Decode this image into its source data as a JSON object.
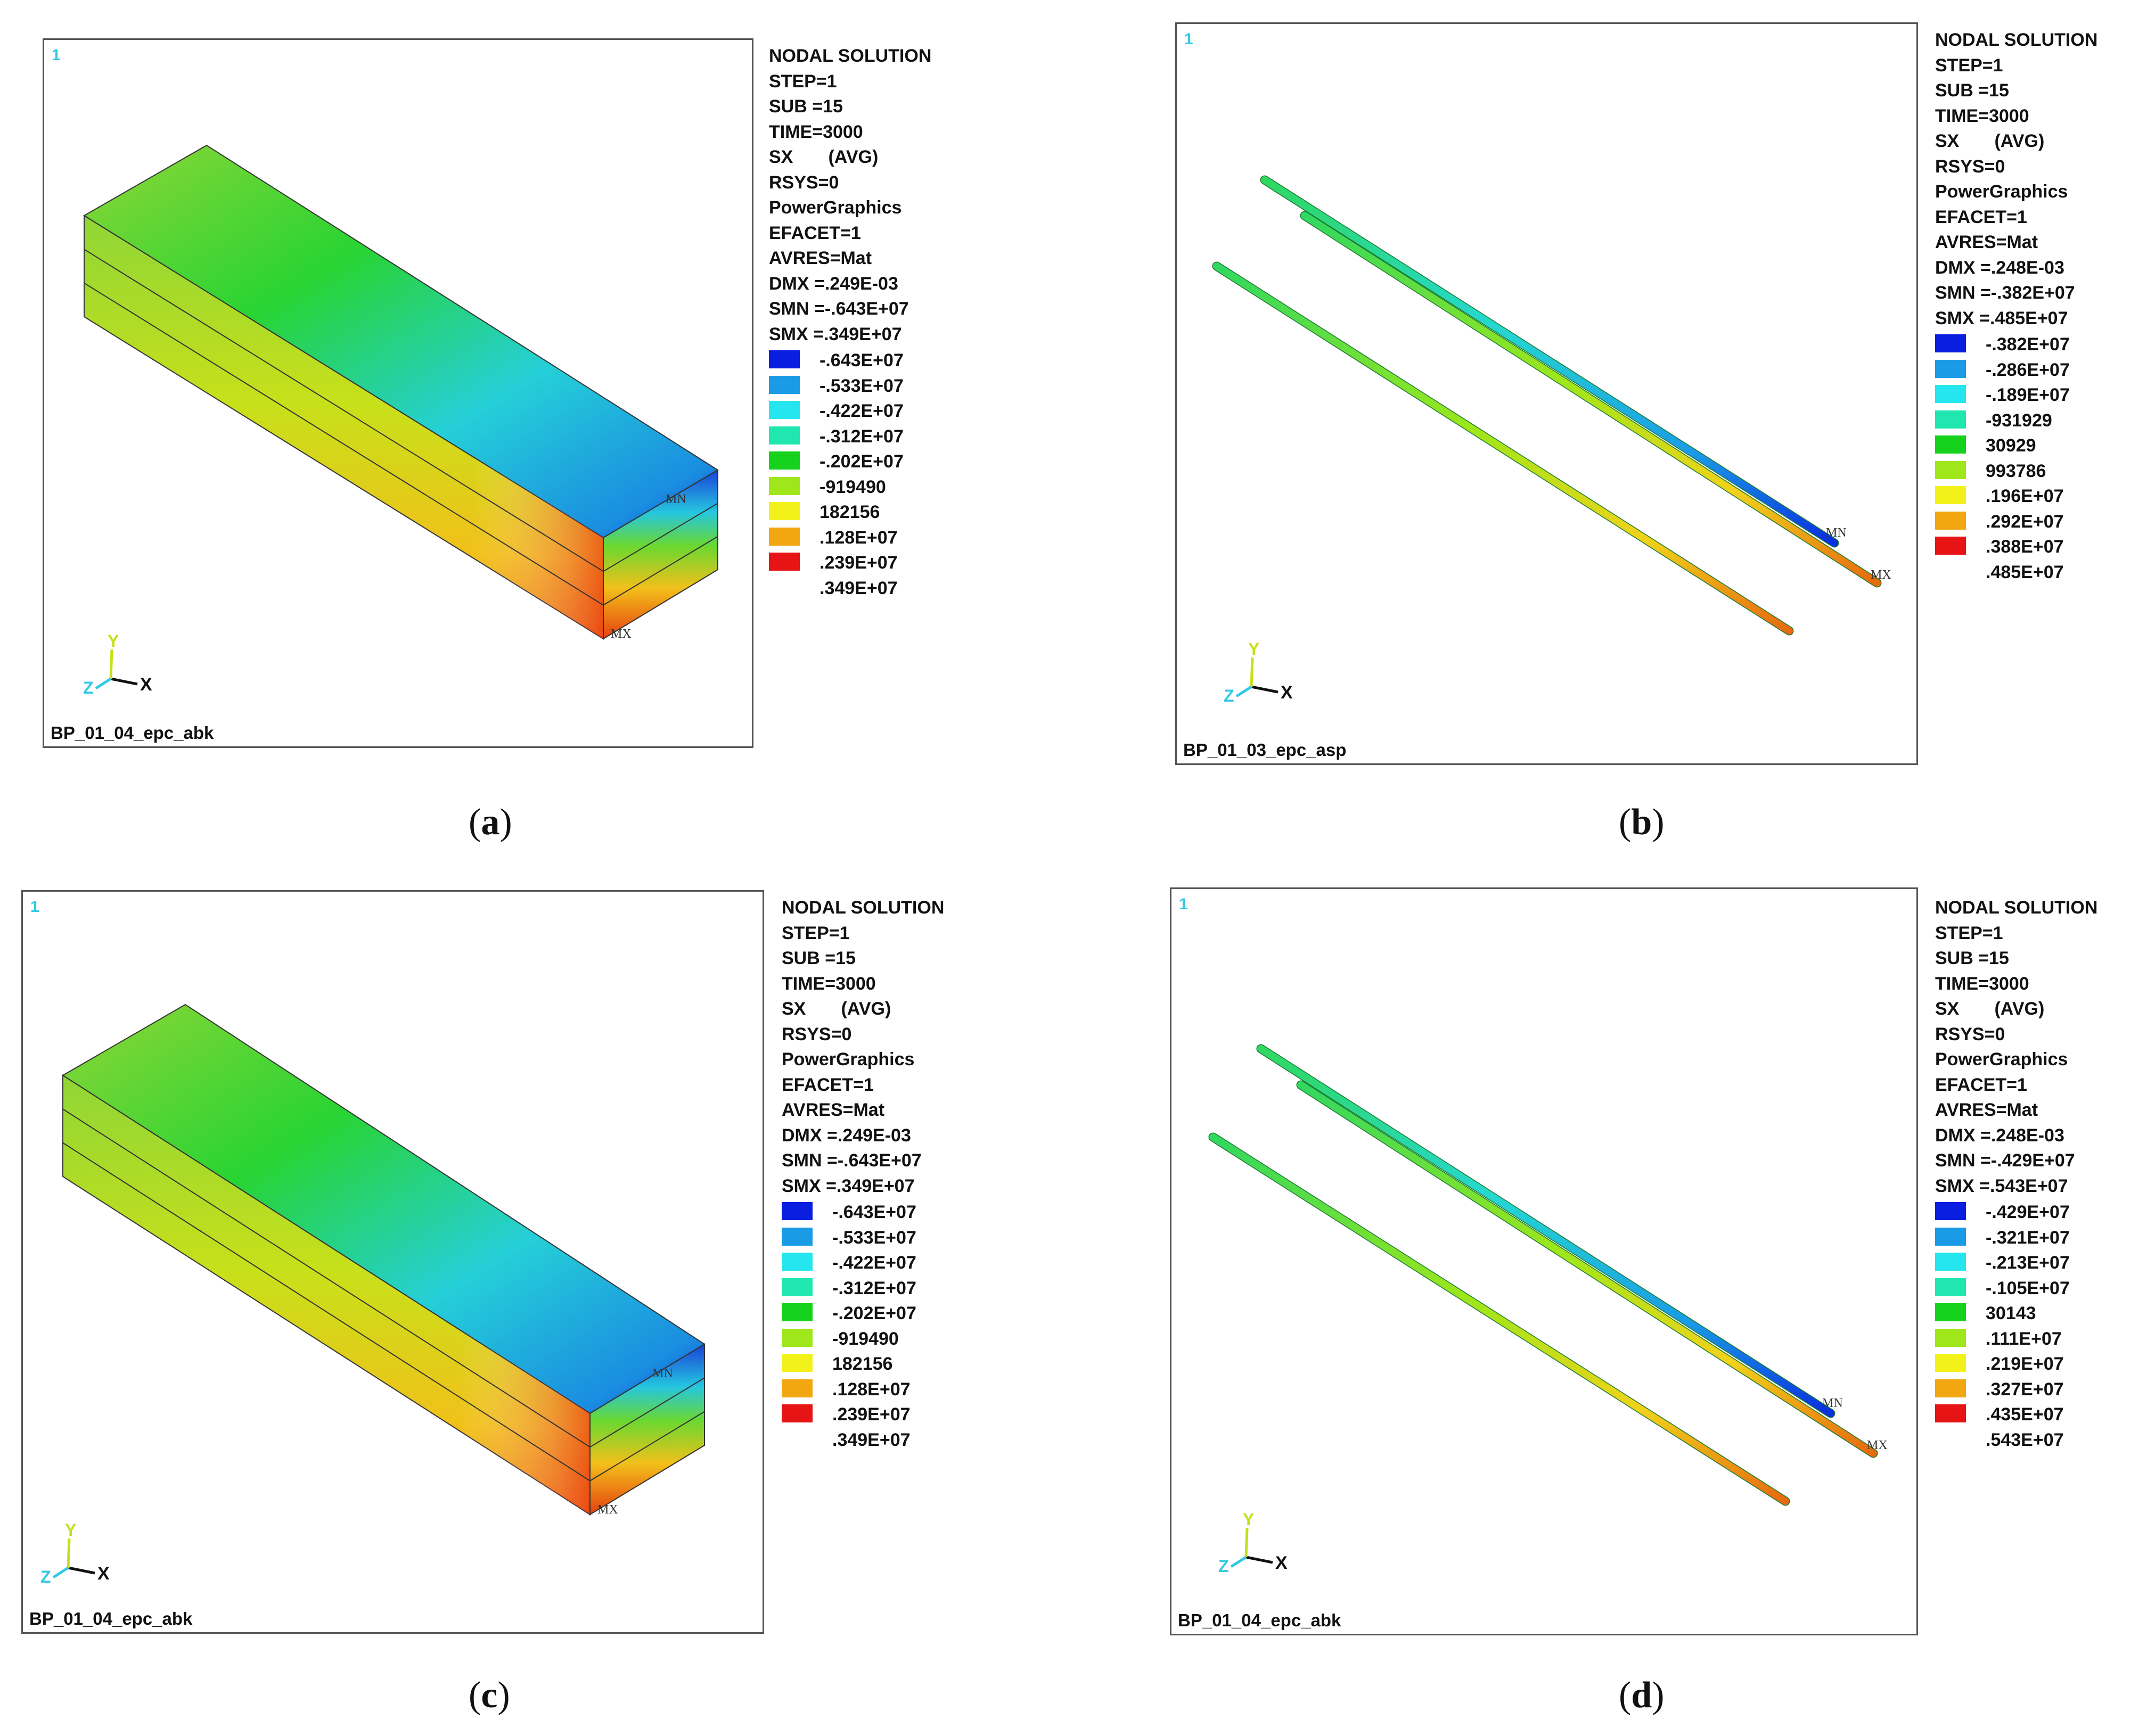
{
  "panels": [
    {
      "id": "a",
      "caption_letter": "a",
      "window_number": "1",
      "jobname": "BP_01_04_epc_abk",
      "geometry": "block",
      "min_marker": "MN",
      "max_marker": "MX",
      "header": [
        "NODAL SOLUTION",
        "STEP=1",
        "SUB =15",
        "TIME=3000",
        "SX       (AVG)",
        "RSYS=0",
        "PowerGraphics",
        "EFACET=1",
        "AVRES=Mat",
        "DMX =.249E-03",
        "SMN =-.643E+07",
        "SMX =.349E+07"
      ],
      "contours": [
        "-.643E+07",
        "-.533E+07",
        "-.422E+07",
        "-.312E+07",
        "-.202E+07",
        "-919490",
        "182156",
        ".128E+07",
        ".239E+07",
        ".349E+07"
      ]
    },
    {
      "id": "b",
      "caption_letter": "b",
      "window_number": "1",
      "jobname": "BP_01_03_epc_asp",
      "geometry": "rods",
      "min_marker": "MN",
      "max_marker": "MX",
      "header": [
        "NODAL SOLUTION",
        "STEP=1",
        "SUB =15",
        "TIME=3000",
        "SX       (AVG)",
        "RSYS=0",
        "PowerGraphics",
        "EFACET=1",
        "AVRES=Mat",
        "DMX =.248E-03",
        "SMN =-.382E+07",
        "SMX =.485E+07"
      ],
      "contours": [
        "-.382E+07",
        "-.286E+07",
        "-.189E+07",
        "-931929",
        "30929",
        "993786",
        ".196E+07",
        ".292E+07",
        ".388E+07",
        ".485E+07"
      ]
    },
    {
      "id": "c",
      "caption_letter": "c",
      "window_number": "1",
      "jobname": "BP_01_04_epc_abk",
      "geometry": "block",
      "min_marker": "MN",
      "max_marker": "MX",
      "header": [
        "NODAL SOLUTION",
        "STEP=1",
        "SUB =15",
        "TIME=3000",
        "SX       (AVG)",
        "RSYS=0",
        "PowerGraphics",
        "EFACET=1",
        "AVRES=Mat",
        "DMX =.249E-03",
        "SMN =-.643E+07",
        "SMX =.349E+07"
      ],
      "contours": [
        "-.643E+07",
        "-.533E+07",
        "-.422E+07",
        "-.312E+07",
        "-.202E+07",
        "-919490",
        "182156",
        ".128E+07",
        ".239E+07",
        ".349E+07"
      ]
    },
    {
      "id": "d",
      "caption_letter": "d",
      "window_number": "1",
      "jobname": "BP_01_04_epc_abk",
      "geometry": "rods",
      "min_marker": "MN",
      "max_marker": "MX",
      "header": [
        "NODAL SOLUTION",
        "STEP=1",
        "SUB =15",
        "TIME=3000",
        "SX       (AVG)",
        "RSYS=0",
        "PowerGraphics",
        "EFACET=1",
        "AVRES=Mat",
        "DMX =.248E-03",
        "SMN =-.429E+07",
        "SMX =.543E+07"
      ],
      "contours": [
        "-.429E+07",
        "-.321E+07",
        "-.213E+07",
        "-.105E+07",
        "30143",
        ".111E+07",
        ".219E+07",
        ".327E+07",
        ".435E+07",
        ".543E+07"
      ]
    }
  ],
  "contour_colors": [
    "#0a1ee0",
    "#1a9be6",
    "#25e6ee",
    "#20e6b0",
    "#16d21c",
    "#9fe61a",
    "#f2f21a",
    "#f2a60f",
    "#e61414"
  ],
  "triad": {
    "x_label": "X",
    "y_label": "Y",
    "z_label": "Z"
  }
}
